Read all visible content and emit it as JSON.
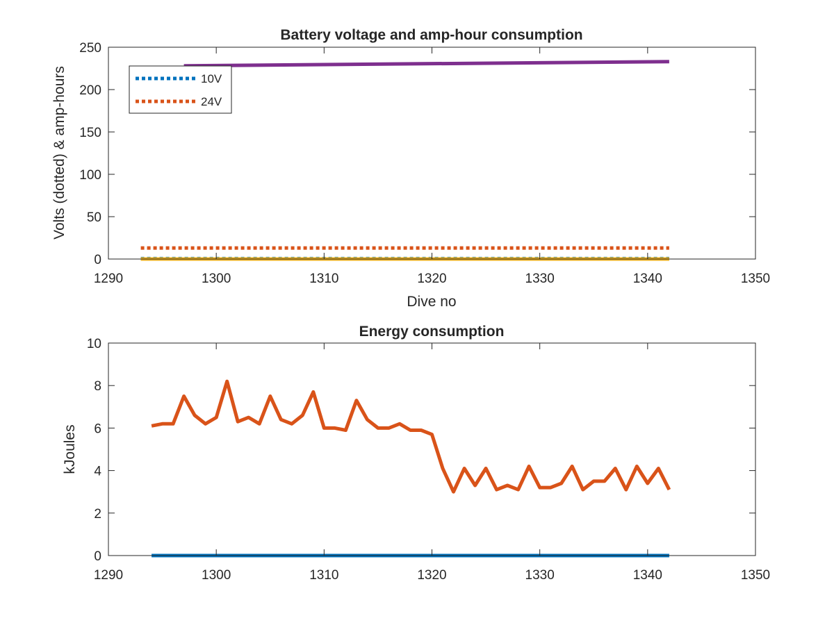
{
  "chart_data": [
    {
      "type": "line",
      "title": "Battery voltage and amp-hour consumption",
      "xlabel": "Dive no",
      "ylabel": "Volts (dotted) & amp-hours",
      "xlim": [
        1290,
        1350
      ],
      "ylim": [
        0,
        250
      ],
      "xticks": [
        1290,
        1300,
        1310,
        1320,
        1330,
        1340,
        1350
      ],
      "yticks": [
        0,
        50,
        100,
        150,
        200,
        250
      ],
      "grid": false,
      "legend": {
        "placement": "top-left",
        "entries": [
          "10V",
          "24V"
        ]
      },
      "series": [
        {
          "name": "10V",
          "style": "dotted",
          "color": "#0072BD",
          "x": [
            1293,
            1342
          ],
          "y": [
            0.5,
            0.5
          ]
        },
        {
          "name": "24V",
          "style": "dotted",
          "color": "#D95319",
          "x": [
            1293,
            1342
          ],
          "y": [
            13,
            13
          ]
        },
        {
          "style": "solid",
          "color": "#EDB120",
          "x": [
            1293,
            1342
          ],
          "y": [
            0,
            0
          ]
        },
        {
          "style": "solid",
          "color": "#7E2F8E",
          "x": [
            1297,
            1342
          ],
          "y": [
            228,
            233
          ]
        }
      ]
    },
    {
      "type": "line",
      "title": "Energy consumption",
      "xlabel": "",
      "ylabel": "kJoules",
      "xlim": [
        1290,
        1350
      ],
      "ylim": [
        0,
        10
      ],
      "xticks": [
        1290,
        1300,
        1310,
        1320,
        1330,
        1340,
        1350
      ],
      "yticks": [
        0,
        2,
        4,
        6,
        8,
        10
      ],
      "grid": false,
      "series": [
        {
          "style": "solid",
          "color": "#D95319",
          "x": [
            1294,
            1295,
            1296,
            1297,
            1298,
            1299,
            1300,
            1301,
            1302,
            1303,
            1304,
            1305,
            1306,
            1307,
            1308,
            1309,
            1310,
            1311,
            1312,
            1313,
            1314,
            1315,
            1316,
            1317,
            1318,
            1319,
            1320,
            1321,
            1322,
            1323,
            1324,
            1325,
            1326,
            1327,
            1328,
            1329,
            1330,
            1331,
            1332,
            1333,
            1334,
            1335,
            1336,
            1337,
            1338,
            1339,
            1340,
            1341,
            1342
          ],
          "y": [
            6.1,
            6.2,
            6.2,
            7.5,
            6.6,
            6.2,
            6.5,
            8.2,
            6.3,
            6.5,
            6.2,
            7.5,
            6.4,
            6.2,
            6.6,
            7.7,
            6.0,
            6.0,
            5.9,
            7.3,
            6.4,
            6.0,
            6.0,
            6.2,
            5.9,
            5.9,
            5.7,
            4.1,
            3.0,
            4.1,
            3.3,
            4.1,
            3.1,
            3.3,
            3.1,
            4.2,
            3.2,
            3.2,
            3.4,
            4.2,
            3.1,
            3.5,
            3.5,
            4.1,
            3.1,
            4.2,
            3.4,
            4.1,
            3.1
          ]
        },
        {
          "style": "solid",
          "color": "#0072BD",
          "x": [
            1294,
            1342
          ],
          "y": [
            0,
            0
          ]
        }
      ]
    }
  ]
}
